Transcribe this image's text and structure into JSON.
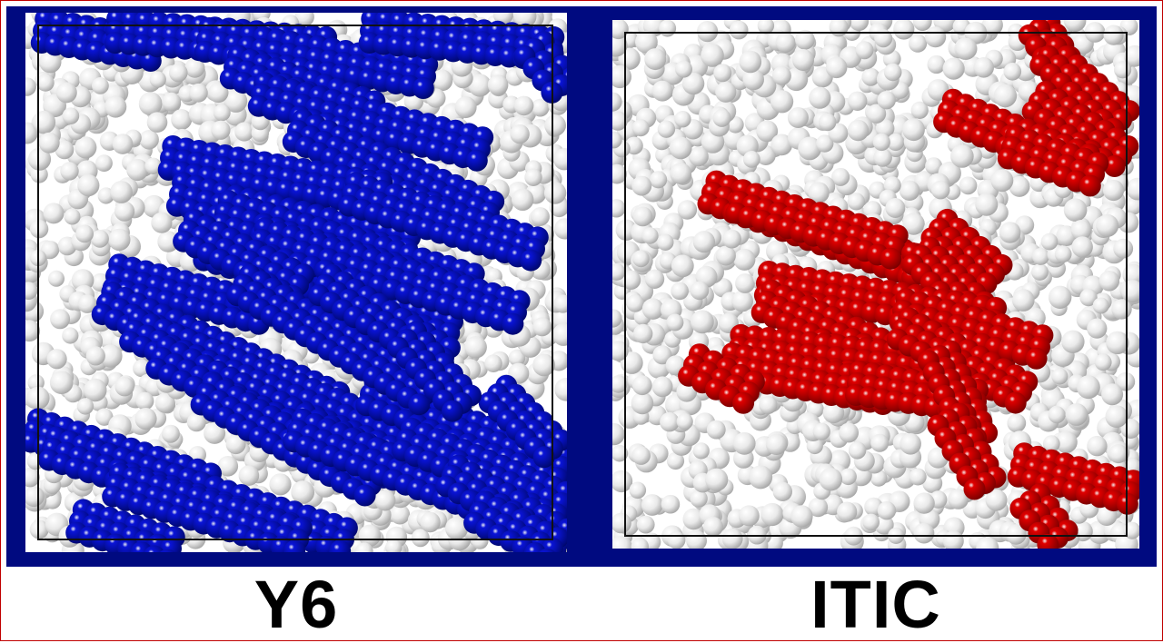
{
  "colors": {
    "background": "#ffffff",
    "border_band": "#000a80",
    "frame_line": "#c00000",
    "atom_white": "#e8e8e8",
    "y6_highlight": "#0a14d8",
    "itic_highlight": "#e00000"
  },
  "panels": [
    {
      "id": "y6",
      "label": "Y6",
      "highlight_color": "#0a14d8"
    },
    {
      "id": "itic",
      "label": "ITIC",
      "highlight_color": "#e00000"
    }
  ]
}
